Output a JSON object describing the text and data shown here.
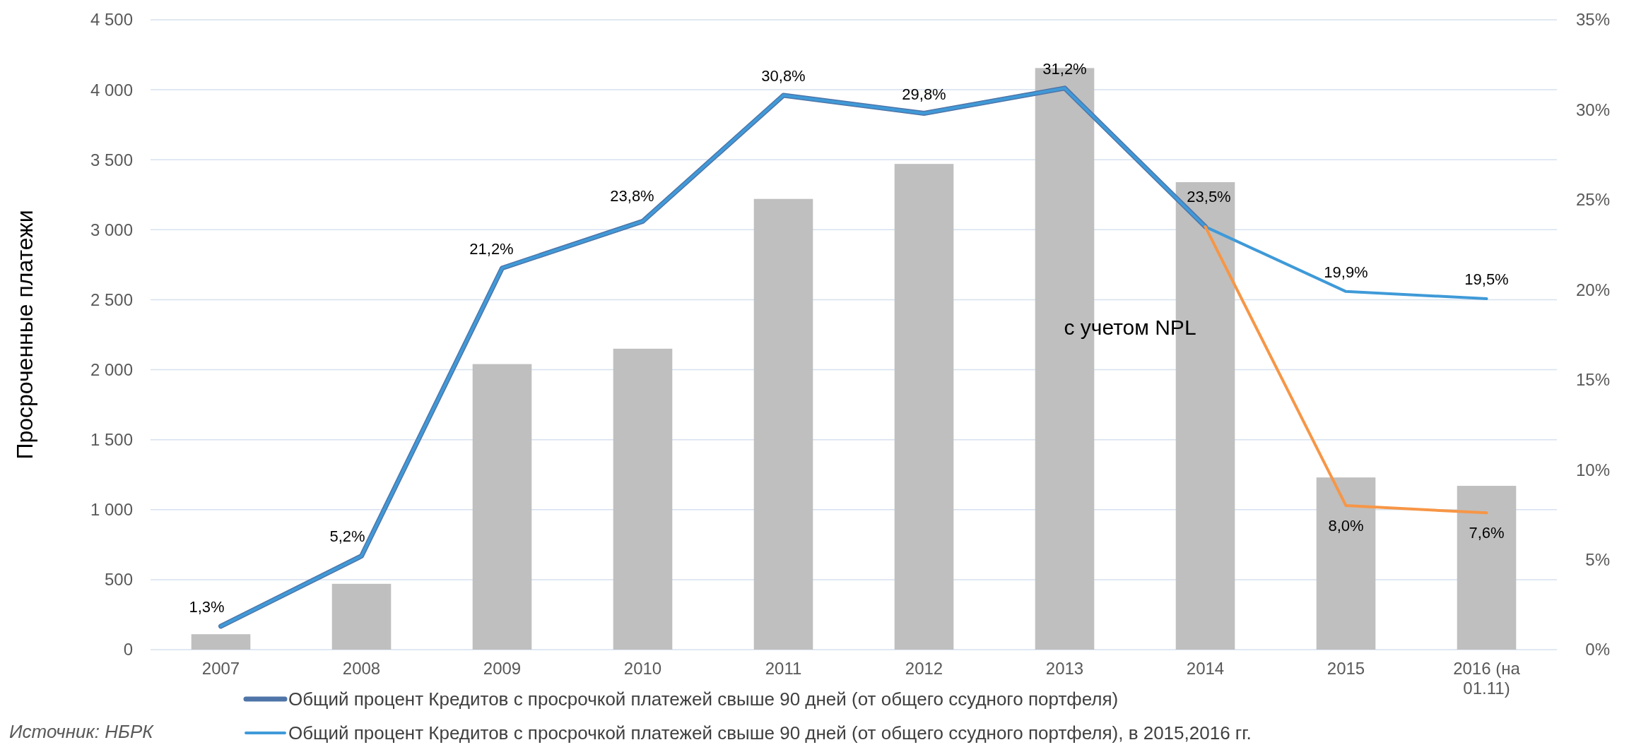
{
  "chart_data": {
    "type": "bar",
    "ylabel": "Просроченные платежи",
    "categories": [
      "2007",
      "2008",
      "2009",
      "2010",
      "2011",
      "2012",
      "2013",
      "2014",
      "2015",
      "2016 (на 01.11)"
    ],
    "series": [
      {
        "color": "#bfbfbf",
        "values": [
          110,
          470,
          2040,
          2150,
          3220,
          3470,
          4155,
          3340,
          1230,
          1170
        ]
      },
      {
        "type": "line",
        "axis": "y2",
        "name": "Общий процент Кредитов с просрочкой платежей свыше 90 дней (от общего ссудного портфеля)",
        "color": "#4f75a8",
        "values": [
          1.3,
          5.2,
          21.2,
          23.8,
          30.8,
          29.8,
          31.2,
          23.5,
          null,
          null
        ],
        "value_labels": [
          "1,3%",
          "5,2%",
          "21,2%",
          "23,8%",
          "30,8%",
          "29,8%",
          "31,2%",
          "23,5%",
          null,
          null
        ]
      },
      {
        "type": "line",
        "axis": "y2",
        "name": "Общий процент Кредитов с просрочкой платежей свыше 90 дней (от общего ссудного портфеля), в 2015,2016 гг.",
        "color": "#3f9ad8",
        "values": [
          1.3,
          5.2,
          21.2,
          23.8,
          30.8,
          29.8,
          31.2,
          23.5,
          19.9,
          19.5
        ],
        "value_labels": [
          null,
          null,
          null,
          null,
          null,
          null,
          null,
          null,
          "19,9%",
          "19,5%"
        ]
      },
      {
        "type": "line",
        "axis": "y2",
        "color": "#f79646",
        "values": [
          null,
          null,
          null,
          null,
          null,
          null,
          null,
          23.5,
          8.0,
          7.6
        ],
        "value_labels": [
          null,
          null,
          null,
          null,
          null,
          null,
          null,
          null,
          "8,0%",
          "7,6%"
        ]
      }
    ],
    "ylim": [
      0,
      4500
    ],
    "yticks": [
      0,
      500,
      {
        "value": 1000,
        "label": "1 000"
      },
      {
        "value": 1500,
        "label": "1 500"
      },
      {
        "value": 2000,
        "label": "2 000"
      },
      {
        "value": 2500,
        "label": "2 500"
      },
      {
        "value": 3000,
        "label": "3 000"
      },
      {
        "value": 3500,
        "label": "3 500"
      },
      {
        "value": 4000,
        "label": "4 000"
      },
      {
        "value": 4500,
        "label": "4 500"
      }
    ],
    "y2lim": [
      0,
      35
    ],
    "y2ticks": [
      {
        "value": 0,
        "label": "0%"
      },
      {
        "value": 5,
        "label": "5%"
      },
      {
        "value": 10,
        "label": "10%"
      },
      {
        "value": 15,
        "label": "15%"
      },
      {
        "value": 20,
        "label": "20%"
      },
      {
        "value": 25,
        "label": "25%"
      },
      {
        "value": 30,
        "label": "30%"
      },
      {
        "value": 35,
        "label": "35%"
      }
    ],
    "grid": "y",
    "legend": "bottom",
    "annotations": [
      "с учетом NPL",
      "Источник: НБРК"
    ]
  }
}
